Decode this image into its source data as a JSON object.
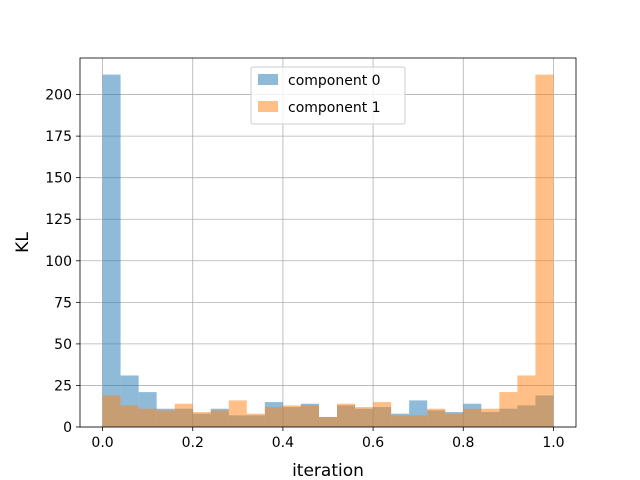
{
  "chart_data": {
    "type": "bar",
    "title": "",
    "xlabel": "iteration",
    "ylabel": "KL",
    "xlim": [
      -0.05,
      1.05
    ],
    "ylim": [
      0,
      222
    ],
    "grid": true,
    "legend_position": "top-center",
    "bin_edges": [
      0.0,
      0.04,
      0.08,
      0.12,
      0.16,
      0.2,
      0.24,
      0.28,
      0.32,
      0.36,
      0.4,
      0.44,
      0.48,
      0.52,
      0.56,
      0.6,
      0.64,
      0.68,
      0.72,
      0.76,
      0.8,
      0.84,
      0.88,
      0.92,
      0.96,
      1.0
    ],
    "x_ticks": [
      "0.0",
      "0.2",
      "0.4",
      "0.6",
      "0.8",
      "1.0"
    ],
    "x_tick_values": [
      0.0,
      0.2,
      0.4,
      0.6,
      0.8,
      1.0
    ],
    "y_ticks": [
      "0",
      "25",
      "50",
      "75",
      "100",
      "125",
      "150",
      "175",
      "200"
    ],
    "y_tick_values": [
      0,
      25,
      50,
      75,
      100,
      125,
      150,
      175,
      200
    ],
    "series": [
      {
        "name": "component 0",
        "color": "#1f77b4",
        "values": [
          212,
          31,
          21,
          11,
          11,
          8,
          11,
          7,
          7,
          15,
          12,
          14,
          6,
          13,
          11,
          12,
          8,
          16,
          10,
          9,
          14,
          9,
          11,
          13,
          19
        ]
      },
      {
        "name": "component 1",
        "color": "#ff7f0e",
        "values": [
          19,
          13,
          11,
          10,
          14,
          9,
          10,
          16,
          8,
          12,
          13,
          13,
          6,
          14,
          12,
          15,
          7,
          7,
          11,
          8,
          11,
          11,
          21,
          31,
          212
        ]
      }
    ],
    "bar_alpha": 0.5
  }
}
